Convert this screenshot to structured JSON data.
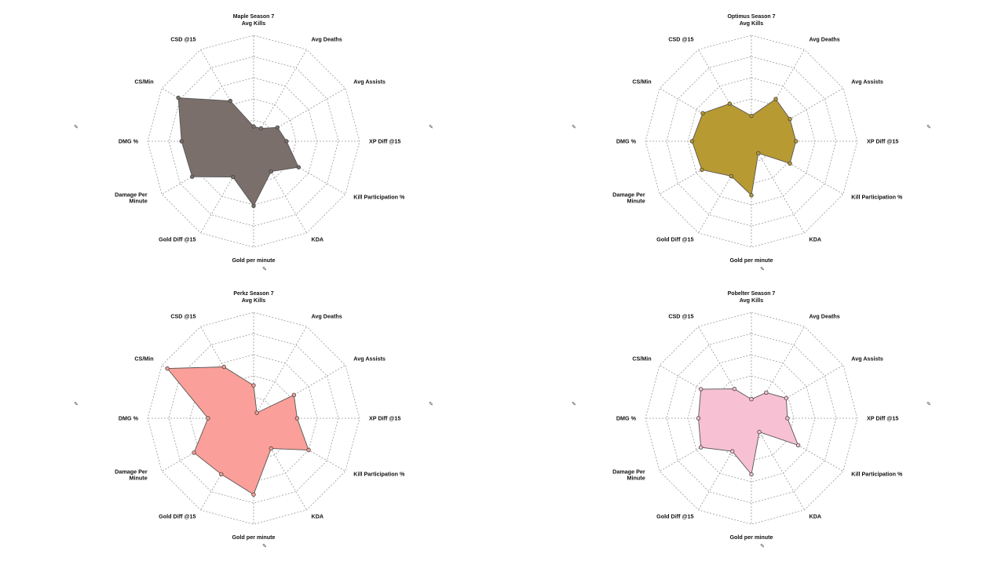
{
  "chart_data": [
    {
      "type": "radar",
      "title": "Maple Season 7",
      "color": "#7b6f6b",
      "axes": [
        "Avg Kills",
        "Avg Deaths",
        "Avg Assists",
        "XP Diff @15",
        "Kill Participation %",
        "KDA",
        "Gold per minute",
        "Gold Diff @15",
        "Damage Per Minute",
        "DMG %",
        "CS/Min",
        "CSD @15"
      ],
      "values": [
        0.14,
        0.14,
        0.26,
        0.31,
        0.49,
        0.33,
        0.61,
        0.39,
        0.67,
        0.68,
        0.82,
        0.44
      ],
      "scale": [
        0,
        1
      ],
      "rings": 5
    },
    {
      "type": "radar",
      "title": "Optimus Season 7",
      "color": "#b89a33",
      "axes": [
        "Avg Kills",
        "Avg Deaths",
        "Avg Assists",
        "XP Diff @15",
        "Kill Participation %",
        "KDA",
        "Gold per minute",
        "Gold Diff @15",
        "Damage Per Minute",
        "DMG %",
        "CS/Min",
        "CSD @15"
      ],
      "values": [
        0.24,
        0.46,
        0.42,
        0.42,
        0.42,
        0.13,
        0.51,
        0.38,
        0.54,
        0.56,
        0.53,
        0.41
      ],
      "scale": [
        0,
        1
      ],
      "rings": 5
    },
    {
      "type": "radar",
      "title": "Perkz Season 7",
      "color": "#fa9f99",
      "axes": [
        "Avg Kills",
        "Avg Deaths",
        "Avg Assists",
        "XP Diff @15",
        "Kill Participation %",
        "KDA",
        "Gold per minute",
        "Gold Diff @15",
        "Damage Per Minute",
        "DMG %",
        "CS/Min",
        "CSD @15"
      ],
      "values": [
        0.31,
        0.06,
        0.44,
        0.41,
        0.6,
        0.33,
        0.72,
        0.61,
        0.65,
        0.43,
        0.94,
        0.56
      ],
      "scale": [
        0,
        1
      ],
      "rings": 5
    },
    {
      "type": "radar",
      "title": "Pobelter Season 7",
      "color": "#f7c1d3",
      "axes": [
        "Avg Kills",
        "Avg Deaths",
        "Avg Assists",
        "XP Diff @15",
        "Kill Participation %",
        "KDA",
        "Gold per minute",
        "Gold Diff @15",
        "Damage Per Minute",
        "DMG %",
        "CS/Min",
        "CSD @15"
      ],
      "values": [
        0.18,
        0.28,
        0.38,
        0.34,
        0.51,
        0.15,
        0.53,
        0.36,
        0.55,
        0.5,
        0.55,
        0.32
      ],
      "scale": [
        0,
        1
      ],
      "rings": 5
    }
  ]
}
